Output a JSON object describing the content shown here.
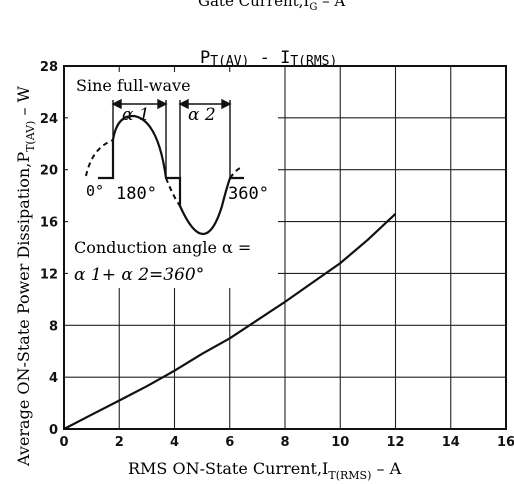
{
  "header_cut_text": "Gate Current,I",
  "header_cut_sub": "G",
  "header_cut_unit": " – A",
  "chart_data": {
    "type": "line",
    "title_parts": {
      "a": "P",
      "a_sub": "T(AV)",
      "mid": " - ",
      "b": "I",
      "b_sub": "T(RMS)"
    },
    "xlabel_main": "RMS ON-State Current,I",
    "xlabel_sub": "T(RMS)",
    "xlabel_unit": " – A",
    "ylabel_main": "Average ON-State Power Dissipation,P",
    "ylabel_sub": "T(AV)",
    "ylabel_unit": " – W",
    "xlim": [
      0,
      16
    ],
    "ylim": [
      0,
      28
    ],
    "xticks": [
      0,
      2,
      4,
      6,
      8,
      10,
      12,
      14,
      16
    ],
    "yticks": [
      0,
      4,
      8,
      12,
      16,
      20,
      24,
      28
    ],
    "grid": true,
    "series": [
      {
        "x": [
          0,
          1,
          2,
          3,
          4,
          5,
          6,
          7,
          8,
          9,
          10,
          11,
          12
        ],
        "y": [
          0,
          1.1,
          2.2,
          3.3,
          4.5,
          5.8,
          7.0,
          8.4,
          9.8,
          11.3,
          12.8,
          14.6,
          16.6
        ]
      }
    ]
  },
  "inset": {
    "title": "Sine full-wave",
    "alpha1": "α 1",
    "alpha2": "α 2",
    "label_0": "0°",
    "label_180": "180°",
    "label_360": "360°",
    "cond_line1": "Conduction angle α =",
    "cond_line2": "α 1+ α 2=360°"
  }
}
